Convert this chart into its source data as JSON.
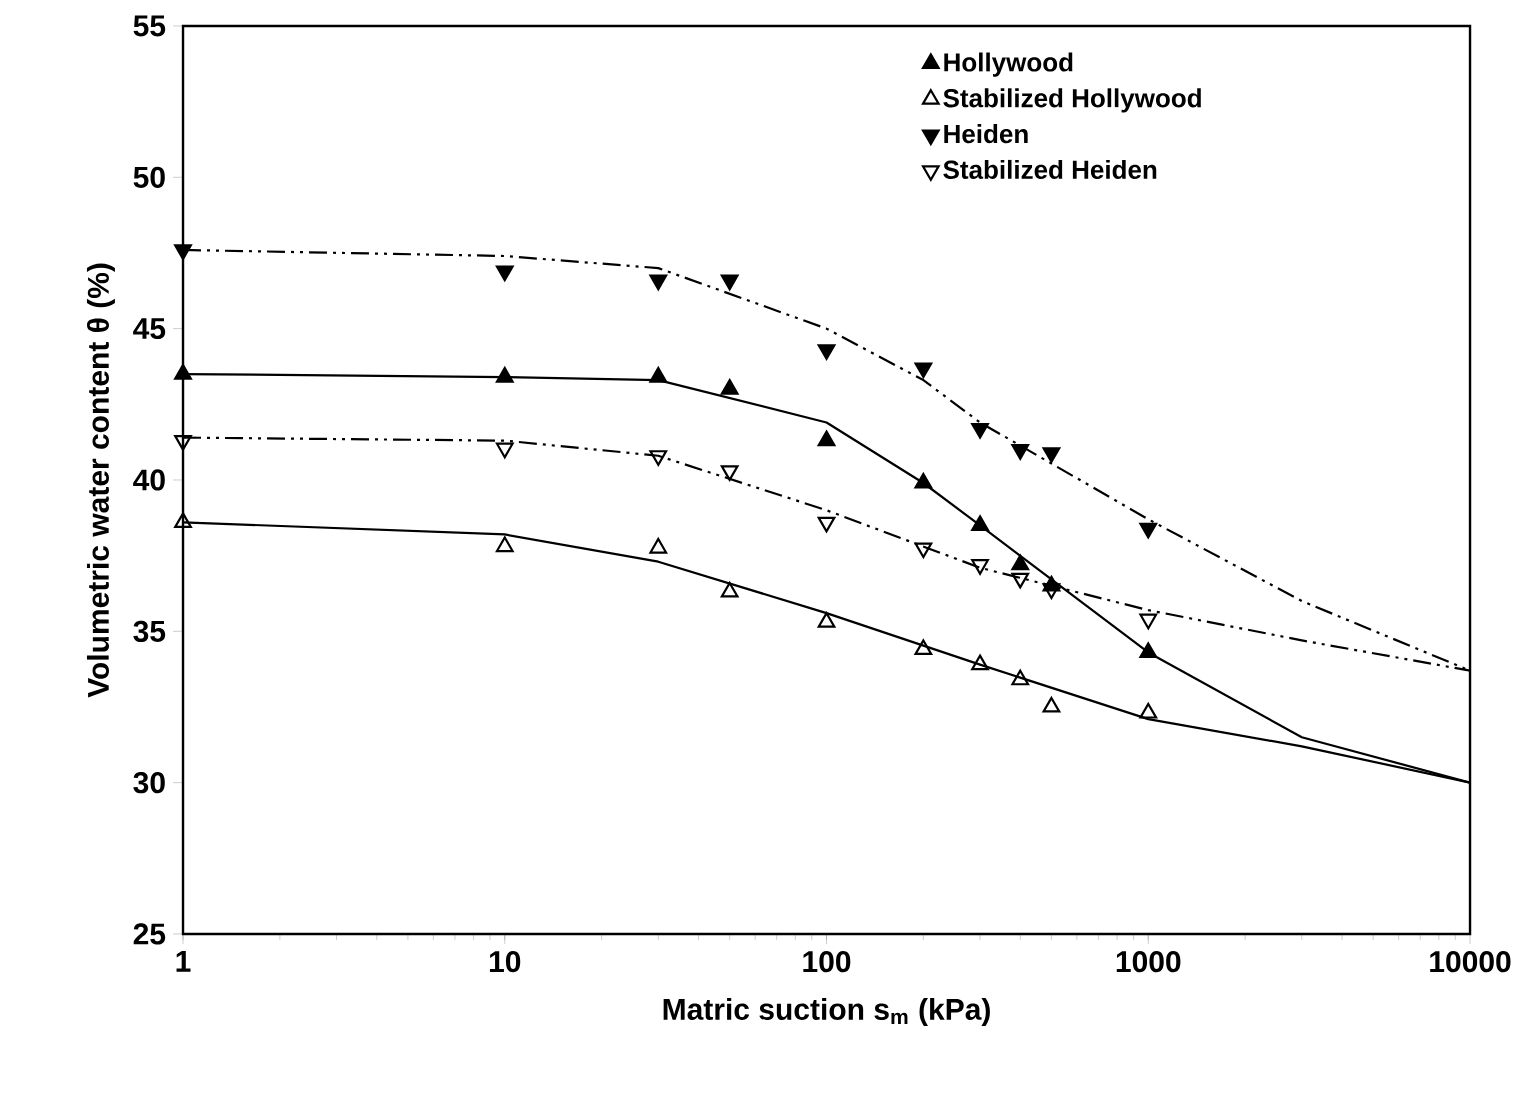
{
  "chart_data": {
    "type": "scatter",
    "xlabel": "Matric suction  s$_{m}$ (kPa)",
    "ylabel": "Volumetric water content  θ (%)",
    "log": "x",
    "xlim": [
      1,
      10000
    ],
    "ylim": [
      25,
      55
    ],
    "xticks": [
      1,
      10,
      100,
      1000,
      10000
    ],
    "yticks": [
      25,
      30,
      35,
      40,
      45,
      50,
      55
    ],
    "grid": false,
    "legend": "top right",
    "series": [
      {
        "name": "Hollywood",
        "color": "#000000",
        "marker": "triangle",
        "x": [
          1,
          10,
          30,
          50,
          100,
          200,
          300,
          400,
          500,
          1000
        ],
        "values": [
          43.5,
          43.4,
          43.4,
          43.0,
          41.3,
          39.9,
          38.5,
          37.2,
          36.5,
          34.3
        ]
      },
      {
        "name": "Stabilized Hollywood",
        "color": "#000000",
        "marker": "triangle-open",
        "x": [
          1,
          10,
          30,
          50,
          100,
          200,
          300,
          400,
          500,
          1000
        ],
        "values": [
          38.6,
          37.8,
          37.75,
          36.3,
          35.3,
          34.4,
          33.9,
          33.4,
          32.5,
          32.3
        ]
      },
      {
        "name": "Heiden",
        "color": "#000000",
        "marker": "triangle-down",
        "x": [
          1,
          10,
          30,
          50,
          100,
          200,
          300,
          400,
          500,
          1000
        ],
        "values": [
          47.6,
          46.9,
          46.6,
          46.6,
          44.3,
          43.7,
          41.7,
          41.0,
          40.9,
          38.4
        ]
      },
      {
        "name": "Stabilized Heiden",
        "color": "#000000",
        "marker": "triangle-down-open",
        "x": [
          1,
          10,
          30,
          50,
          100,
          200,
          300,
          400,
          500,
          1000
        ],
        "values": [
          41.3,
          41.05,
          40.8,
          40.3,
          38.6,
          37.75,
          37.2,
          36.75,
          36.4,
          35.4
        ]
      },
      {
        "type": "line",
        "color": "#000000",
        "marker": "none",
        "line_style": "solid",
        "x": [
          1,
          10,
          30,
          100,
          200,
          300,
          1000,
          3000,
          10000
        ],
        "values": [
          43.5,
          43.4,
          43.3,
          41.9,
          39.9,
          38.5,
          34.3,
          31.5,
          30.0
        ]
      },
      {
        "type": "line",
        "color": "#000000",
        "marker": "none",
        "line_style": "solid",
        "x": [
          1,
          10,
          30,
          100,
          300,
          1000,
          3000,
          10000
        ],
        "values": [
          38.6,
          38.2,
          37.3,
          35.6,
          33.9,
          32.1,
          31.2,
          30.0
        ]
      },
      {
        "type": "line",
        "color": "#000000",
        "marker": "none",
        "line_style": "dashdotdotted",
        "x": [
          1,
          10,
          30,
          100,
          200,
          300,
          1000,
          3000,
          10000
        ],
        "values": [
          47.6,
          47.4,
          47.0,
          45.0,
          43.3,
          41.9,
          38.7,
          36.0,
          33.7
        ]
      },
      {
        "type": "line",
        "color": "#000000",
        "marker": "none",
        "line_style": "dashdotdotted",
        "x": [
          1,
          10,
          30,
          100,
          300,
          1000,
          3000,
          10000
        ],
        "values": [
          41.4,
          41.3,
          40.8,
          39.0,
          37.1,
          35.7,
          34.7,
          33.7
        ]
      }
    ]
  }
}
